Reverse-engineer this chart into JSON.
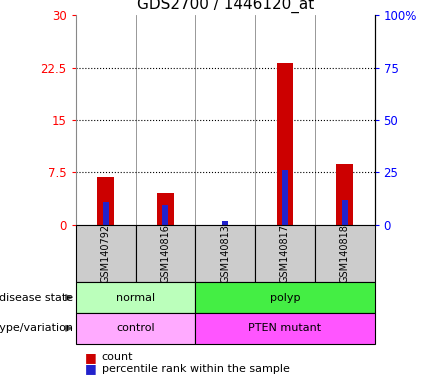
{
  "title": "GDS2700 / 1446120_at",
  "samples": [
    "GSM140792",
    "GSM140816",
    "GSM140813",
    "GSM140817",
    "GSM140818"
  ],
  "count_values": [
    6.8,
    4.5,
    0.0,
    23.2,
    8.7
  ],
  "percentile_values": [
    3.2,
    2.8,
    0.5,
    7.8,
    3.5
  ],
  "ylim_left": [
    0,
    30
  ],
  "ylim_right": [
    0,
    100
  ],
  "yticks_left": [
    0,
    7.5,
    15,
    22.5,
    30
  ],
  "ytick_labels_left": [
    "0",
    "7.5",
    "15",
    "22.5",
    "30"
  ],
  "ytick_labels_right": [
    "0",
    "25",
    "50",
    "75",
    "100%"
  ],
  "bar_color_count": "#cc0000",
  "bar_color_pct": "#2222cc",
  "disease_state": [
    {
      "label": "normal",
      "span": [
        0,
        2
      ],
      "color": "#bbffbb"
    },
    {
      "label": "polyp",
      "span": [
        2,
        5
      ],
      "color": "#44ee44"
    }
  ],
  "genotype": [
    {
      "label": "control",
      "span": [
        0,
        2
      ],
      "color": "#ffaaff"
    },
    {
      "label": "PTEN mutant",
      "span": [
        2,
        5
      ],
      "color": "#ff55ff"
    }
  ],
  "left_label_disease": "disease state",
  "left_label_genotype": "genotype/variation",
  "legend_count": "count",
  "legend_pct": "percentile rank within the sample",
  "title_fontsize": 11,
  "tick_fontsize": 8.5,
  "sample_bg": "#cccccc"
}
